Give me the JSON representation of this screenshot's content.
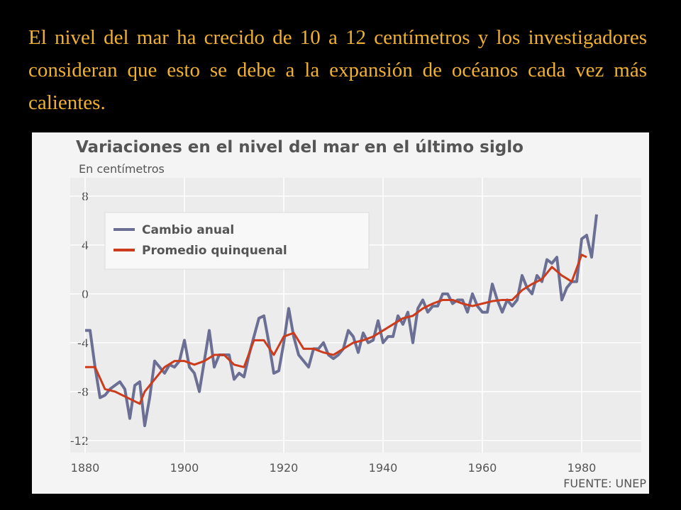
{
  "caption": "El nivel del mar ha crecido de 10 a 12 centímetros y los investigadores consideran que esto se debe a la expansión de océanos cada vez más calientes.",
  "chart_data": {
    "type": "line",
    "title": "Variaciones en el nivel del mar en el último siglo",
    "subtitle": "En centímetros",
    "source": "FUENTE: UNEP",
    "xlim": [
      1877,
      1992
    ],
    "xticks": [
      1880,
      1900,
      1920,
      1940,
      1960,
      1980
    ],
    "ylim": [
      -13,
      9.5
    ],
    "yticks": [
      8,
      4,
      0,
      -4,
      -8,
      -12
    ],
    "grid": true,
    "legend": "upper left",
    "series": [
      {
        "name": "Cambio anual",
        "color": "#6b6f94",
        "x": [
          1880,
          1881,
          1882,
          1883,
          1884,
          1885,
          1886,
          1887,
          1888,
          1889,
          1890,
          1891,
          1892,
          1893,
          1894,
          1895,
          1896,
          1897,
          1898,
          1899,
          1900,
          1901,
          1902,
          1903,
          1904,
          1905,
          1906,
          1907,
          1908,
          1909,
          1910,
          1911,
          1912,
          1913,
          1914,
          1915,
          1916,
          1917,
          1918,
          1919,
          1920,
          1921,
          1922,
          1923,
          1924,
          1925,
          1926,
          1927,
          1928,
          1929,
          1930,
          1931,
          1932,
          1933,
          1934,
          1935,
          1936,
          1937,
          1938,
          1939,
          1940,
          1941,
          1942,
          1943,
          1944,
          1945,
          1946,
          1947,
          1948,
          1949,
          1950,
          1951,
          1952,
          1953,
          1954,
          1955,
          1956,
          1957,
          1958,
          1959,
          1960,
          1961,
          1962,
          1963,
          1964,
          1965,
          1966,
          1967,
          1968,
          1969,
          1970,
          1971,
          1972,
          1973,
          1974,
          1975,
          1976,
          1977,
          1978,
          1979,
          1980,
          1981,
          1982,
          1983
        ],
        "values": [
          -3,
          -3,
          -6,
          -8.5,
          -8.3,
          -7.8,
          -7.5,
          -7.2,
          -7.8,
          -10.2,
          -7.5,
          -7.2,
          -10.8,
          -8.5,
          -5.5,
          -6,
          -6.5,
          -5.8,
          -6,
          -5.5,
          -3.8,
          -6,
          -6.5,
          -8,
          -5.5,
          -3,
          -6,
          -5,
          -5,
          -5,
          -7,
          -6.5,
          -6.8,
          -5,
          -3.5,
          -2,
          -1.8,
          -4,
          -6.5,
          -6.3,
          -4,
          -1.2,
          -3.5,
          -5,
          -5.5,
          -6,
          -4.5,
          -4.5,
          -4,
          -5,
          -5.3,
          -5,
          -4.5,
          -3,
          -3.5,
          -4.8,
          -3.2,
          -4,
          -3.8,
          -2.2,
          -4,
          -3.5,
          -3.5,
          -1.8,
          -2.5,
          -1.5,
          -4,
          -1.2,
          -0.5,
          -1.5,
          -1,
          -1,
          0,
          0,
          -0.8,
          -0.5,
          -0.5,
          -1.5,
          0,
          -1,
          -1.5,
          -1.5,
          0.8,
          -0.5,
          -1.5,
          -0.5,
          -1,
          -0.5,
          1.5,
          0.5,
          0,
          1.5,
          1,
          2.8,
          2.5,
          3,
          -0.5,
          0.5,
          1,
          1,
          4.5,
          4.8,
          3,
          6.5
        ]
      },
      {
        "name": "Promedio quinquenal",
        "color": "#cc3b1b",
        "x": [
          1880,
          1882,
          1884,
          1886,
          1888,
          1890,
          1891,
          1892,
          1894,
          1896,
          1898,
          1900,
          1902,
          1904,
          1906,
          1908,
          1910,
          1912,
          1914,
          1916,
          1918,
          1920,
          1922,
          1924,
          1926,
          1928,
          1930,
          1932,
          1934,
          1936,
          1938,
          1940,
          1942,
          1944,
          1946,
          1948,
          1950,
          1952,
          1954,
          1956,
          1958,
          1960,
          1962,
          1964,
          1966,
          1968,
          1970,
          1972,
          1974,
          1976,
          1978,
          1980,
          1981
        ],
        "values": [
          -6,
          -6,
          -7.8,
          -8,
          -8.4,
          -8.8,
          -9,
          -8,
          -7,
          -6,
          -5.5,
          -5.5,
          -5.8,
          -5.5,
          -5,
          -5,
          -5.8,
          -6,
          -3.8,
          -3.8,
          -5,
          -3.5,
          -3.2,
          -4.5,
          -4.5,
          -4.8,
          -5,
          -4.5,
          -4,
          -3.8,
          -3.5,
          -3,
          -2.5,
          -2,
          -1.8,
          -1.2,
          -0.8,
          -0.5,
          -0.5,
          -0.8,
          -1,
          -0.8,
          -0.6,
          -0.5,
          -0.5,
          0.3,
          0.8,
          1.2,
          2.2,
          1.5,
          1,
          3.2,
          3
        ]
      }
    ]
  }
}
